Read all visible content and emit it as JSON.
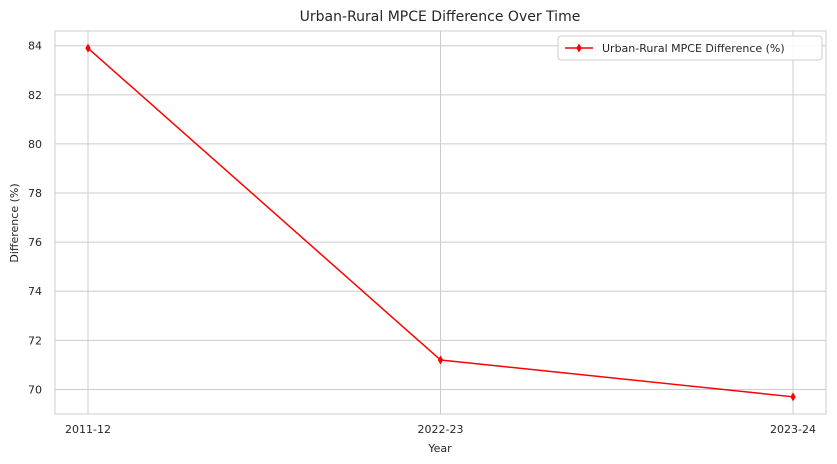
{
  "chart_data": {
    "type": "line",
    "title": "Urban-Rural MPCE Difference Over Time",
    "xlabel": "Year",
    "ylabel": "Difference (%)",
    "categories": [
      "2011-12",
      "2022-23",
      "2023-24"
    ],
    "series": [
      {
        "name": "Urban-Rural MPCE Difference (%)",
        "values": [
          83.9,
          71.2,
          69.7
        ],
        "color": "#ff0000",
        "marker": "thin-diamond"
      }
    ],
    "ylim": [
      69.0,
      84.6
    ],
    "yticks": [
      70,
      72,
      74,
      76,
      78,
      80,
      82,
      84
    ],
    "grid": true,
    "legend_position": "top-right"
  }
}
